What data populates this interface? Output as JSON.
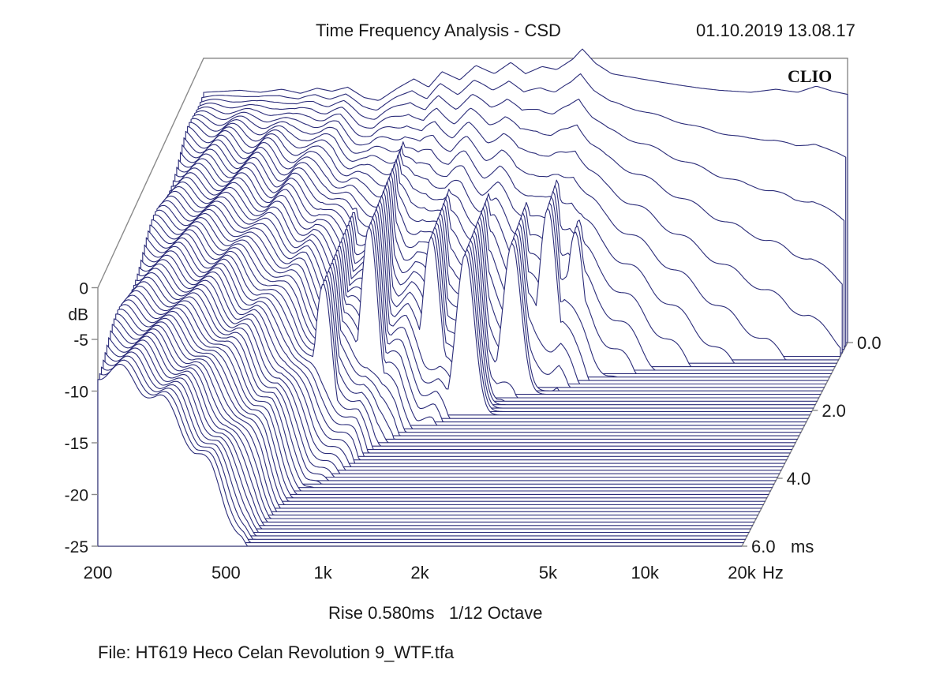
{
  "header": {
    "title": "Time Frequency Analysis - CSD",
    "timestamp": "01.10.2019 13.08.17",
    "brand": "CLIO"
  },
  "footer": {
    "settings": "Rise 0.580ms   1/12 Octave",
    "file": "File: HT619 Heco Celan Revolution 9_WTF.tfa"
  },
  "colors": {
    "trace": "#2b2c79",
    "frame": "#8a8a8a"
  },
  "chart_data": {
    "type": "waterfall",
    "title": "Time Frequency Analysis - CSD",
    "x_axis": {
      "label": "Hz",
      "scale": "log",
      "range": [
        200,
        20000
      ],
      "ticks": [
        200,
        500,
        1000,
        2000,
        5000,
        10000,
        20000
      ],
      "tick_labels": [
        "200",
        "500",
        "1k",
        "2k",
        "5k",
        "10k",
        "20k"
      ]
    },
    "y_axis": {
      "label": "dB",
      "range": [
        -25,
        0
      ],
      "ticks": [
        0,
        -5,
        -10,
        -15,
        -20,
        -25
      ],
      "tick_labels": [
        "0",
        "-5",
        "-10",
        "-15",
        "-20",
        "-25"
      ]
    },
    "z_axis": {
      "label": "ms",
      "range": [
        0,
        6
      ],
      "ticks": [
        0,
        2,
        4,
        6
      ],
      "tick_labels": [
        "0.0",
        "2.0",
        "4.0",
        "6.0"
      ]
    },
    "rise_time_ms": 0.58,
    "smoothing": "1/12 Octave",
    "slices": 60,
    "initial_response": {
      "freq": [
        200,
        230,
        260,
        300,
        350,
        400,
        450,
        500,
        560,
        630,
        700,
        800,
        900,
        1000,
        1100,
        1250,
        1400,
        1600,
        1800,
        2000,
        2250,
        2500,
        2800,
        3000,
        3300,
        3700,
        4200,
        5000,
        6000,
        7000,
        8000,
        9000,
        10000,
        12000,
        14000,
        16000,
        18000,
        20000
      ],
      "db": [
        -0.8,
        -0.7,
        -0.6,
        -0.8,
        -0.5,
        -0.9,
        -0.4,
        -0.7,
        -0.3,
        -1.3,
        -1.6,
        -0.4,
        0.5,
        -0.3,
        1.2,
        0.4,
        1.8,
        1.0,
        2.1,
        1.0,
        1.7,
        1.4,
        2.4,
        3.4,
        2.0,
        1.0,
        0.7,
        0.3,
        -0.1,
        -0.4,
        -0.6,
        -0.7,
        -0.8,
        -0.5,
        -0.8,
        -0.2,
        -0.7,
        -1.0
      ]
    },
    "resonances": [
      {
        "freq": 330,
        "db": -20.0,
        "decay_ms": 6.0
      },
      {
        "freq": 460,
        "db": -19.5,
        "decay_ms": 6.0
      },
      {
        "freq": 700,
        "db": -6.5,
        "decay_ms": 3.2
      },
      {
        "freq": 900,
        "db": -3.0,
        "decay_ms": 2.6
      },
      {
        "freq": 1300,
        "db": -6.0,
        "decay_ms": 2.0
      },
      {
        "freq": 1700,
        "db": -7.0,
        "decay_ms": 2.2
      },
      {
        "freq": 2200,
        "db": -8.0,
        "decay_ms": 1.6
      },
      {
        "freq": 2700,
        "db": -6.0,
        "decay_ms": 1.2
      },
      {
        "freq": 3200,
        "db": -9.0,
        "decay_ms": 1.0
      }
    ]
  }
}
